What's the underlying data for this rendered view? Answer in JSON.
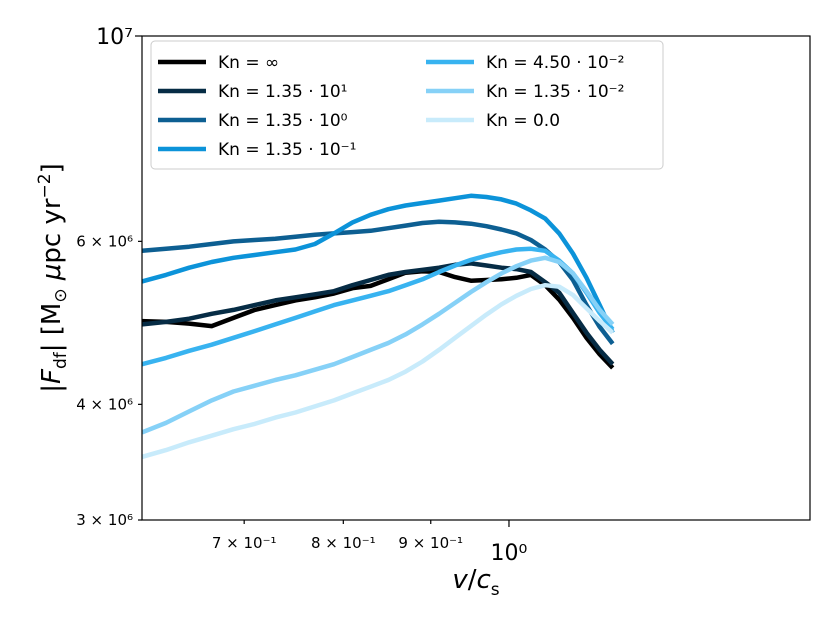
{
  "chart_data": {
    "type": "line",
    "xlabel": "v/c_s",
    "ylabel": "|F_df| [M_⊙ μpc yr^−2]",
    "x_scale": "log",
    "y_scale": "log",
    "xlim": [
      0.61,
      1.5
    ],
    "ylim": [
      3000000,
      10000000
    ],
    "x_ticks": [
      {
        "value": 0.7,
        "label": "7 × 10⁻¹",
        "major": false
      },
      {
        "value": 0.8,
        "label": "8 × 10⁻¹",
        "major": false
      },
      {
        "value": 0.9,
        "label": "9 × 10⁻¹",
        "major": false
      },
      {
        "value": 1.0,
        "label": "10⁰",
        "major": true
      }
    ],
    "y_ticks": [
      {
        "value": 3000000,
        "label": "3 × 10⁶",
        "major": false
      },
      {
        "value": 4000000,
        "label": "4 × 10⁶",
        "major": false
      },
      {
        "value": 6000000,
        "label": "6 × 10⁶",
        "major": false
      },
      {
        "value": 10000000,
        "label": "10⁷",
        "major": true
      }
    ],
    "legend_position": "top-left",
    "legend_columns": 2,
    "x": [
      0.61,
      0.63,
      0.65,
      0.67,
      0.69,
      0.71,
      0.73,
      0.75,
      0.77,
      0.79,
      0.81,
      0.83,
      0.85,
      0.87,
      0.89,
      0.91,
      0.93,
      0.95,
      0.97,
      0.99,
      1.01,
      1.03,
      1.05,
      1.07,
      1.09,
      1.11,
      1.13,
      1.15
    ],
    "series": [
      {
        "name": "Kn = ∞",
        "color": "#000000",
        "values": [
          4920000,
          4910000,
          4890000,
          4860000,
          4960000,
          5060000,
          5120000,
          5180000,
          5220000,
          5270000,
          5340000,
          5370000,
          5460000,
          5550000,
          5570000,
          5560000,
          5490000,
          5440000,
          5450000,
          5460000,
          5480000,
          5520000,
          5380000,
          5190000,
          4960000,
          4720000,
          4530000,
          4380000
        ]
      },
      {
        "name": "Kn = 1.35 · 10¹",
        "color": "#062c45",
        "values": [
          4880000,
          4910000,
          4950000,
          5010000,
          5060000,
          5120000,
          5180000,
          5220000,
          5260000,
          5300000,
          5380000,
          5450000,
          5520000,
          5560000,
          5590000,
          5620000,
          5660000,
          5680000,
          5650000,
          5620000,
          5600000,
          5560000,
          5420000,
          5280000,
          5020000,
          4780000,
          4580000,
          4420000
        ]
      },
      {
        "name": "Kn = 1.35 · 10⁰",
        "color": "#0d5f92",
        "values": [
          5860000,
          5890000,
          5920000,
          5960000,
          6000000,
          6020000,
          6040000,
          6070000,
          6100000,
          6120000,
          6140000,
          6160000,
          6200000,
          6240000,
          6280000,
          6300000,
          6290000,
          6270000,
          6230000,
          6180000,
          6120000,
          6020000,
          5880000,
          5700000,
          5450000,
          5120000,
          4850000,
          4650000
        ]
      },
      {
        "name": "Kn = 1.35 · 10⁻¹",
        "color": "#0c93d9",
        "values": [
          5430000,
          5520000,
          5620000,
          5700000,
          5760000,
          5800000,
          5840000,
          5880000,
          5960000,
          6120000,
          6290000,
          6410000,
          6500000,
          6560000,
          6600000,
          6640000,
          6680000,
          6720000,
          6700000,
          6660000,
          6590000,
          6480000,
          6350000,
          6120000,
          5820000,
          5480000,
          5120000,
          4780000
        ]
      },
      {
        "name": "Kn = 4.50 · 10⁻²",
        "color": "#38b3f0",
        "values": [
          4420000,
          4490000,
          4570000,
          4640000,
          4720000,
          4800000,
          4880000,
          4960000,
          5040000,
          5120000,
          5180000,
          5240000,
          5300000,
          5380000,
          5460000,
          5560000,
          5650000,
          5730000,
          5790000,
          5840000,
          5880000,
          5890000,
          5860000,
          5720000,
          5540000,
          5280000,
          5020000,
          4820000
        ]
      },
      {
        "name": "Kn = 1.35 · 10⁻²",
        "color": "#86d1f7",
        "values": [
          3730000,
          3820000,
          3930000,
          4040000,
          4130000,
          4190000,
          4250000,
          4300000,
          4360000,
          4420000,
          4500000,
          4580000,
          4660000,
          4760000,
          4880000,
          5010000,
          5150000,
          5290000,
          5420000,
          5540000,
          5640000,
          5720000,
          5760000,
          5700000,
          5540000,
          5300000,
          5060000,
          4880000
        ]
      },
      {
        "name": "Kn = 0.0",
        "color": "#c8ebfb",
        "values": [
          3510000,
          3570000,
          3640000,
          3700000,
          3760000,
          3810000,
          3870000,
          3920000,
          3980000,
          4040000,
          4110000,
          4180000,
          4250000,
          4340000,
          4450000,
          4580000,
          4720000,
          4860000,
          5000000,
          5130000,
          5240000,
          5330000,
          5380000,
          5360000,
          5250000,
          5080000,
          4920000,
          4780000
        ]
      }
    ]
  }
}
